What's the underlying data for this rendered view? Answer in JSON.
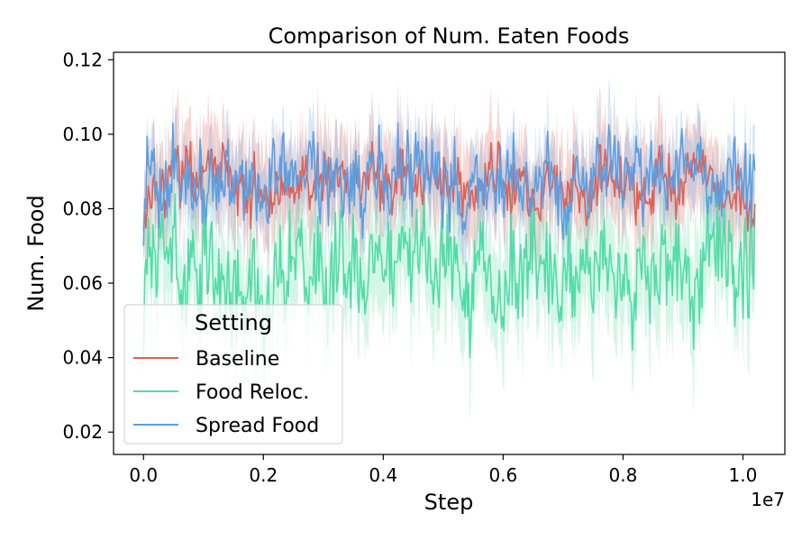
{
  "chart_data": {
    "type": "line",
    "title": "Comparison of Num. Eaten Foods",
    "xlabel": "Step",
    "ylabel": "Num. Food",
    "x_offset_label": "1e7",
    "xlim": [
      -0.05,
      1.07
    ],
    "ylim": [
      0.014,
      0.122
    ],
    "x_scale_multiplier": 10000000,
    "x_ticks": [
      "0.0",
      "0.2",
      "0.4",
      "0.6",
      "0.8",
      "1.0"
    ],
    "y_ticks": [
      "0.02",
      "0.04",
      "0.06",
      "0.08",
      "0.10",
      "0.12"
    ],
    "grid": false,
    "legend": {
      "title": "Setting",
      "placement": "lower-left"
    },
    "x_range": [
      0.0,
      1.02
    ],
    "series": [
      {
        "name": "Baseline",
        "color": "#e06155",
        "mean": 0.087,
        "mean_range": [
          0.074,
          0.098
        ],
        "band_range": [
          0.045,
          0.115
        ]
      },
      {
        "name": "Food Reloc.",
        "color": "#52dca8",
        "mean": 0.063,
        "mean_range": [
          0.04,
          0.084
        ],
        "band_range": [
          0.018,
          0.1
        ]
      },
      {
        "name": "Spread Food",
        "color": "#5b9fe2",
        "mean": 0.088,
        "mean_range": [
          0.07,
          0.103
        ],
        "band_range": [
          0.06,
          0.116
        ]
      }
    ]
  }
}
